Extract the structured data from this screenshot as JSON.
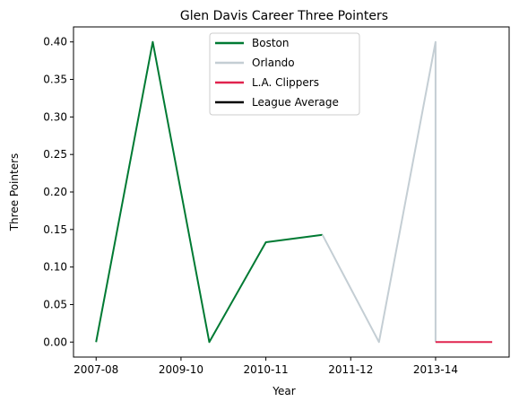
{
  "chart_data": {
    "type": "line",
    "title": "Glen Davis  Career Three Pointers",
    "xlabel": "Year",
    "ylabel": "Three Pointers",
    "x_ticks": [
      {
        "x": 0,
        "label": "2007-08"
      },
      {
        "x": 1.5,
        "label": "2009-10"
      },
      {
        "x": 3,
        "label": "2010-11"
      },
      {
        "x": 4.5,
        "label": "2011-12"
      },
      {
        "x": 6,
        "label": "2013-14"
      }
    ],
    "xlim": [
      -0.4,
      7.3
    ],
    "ylim": [
      -0.02,
      0.42
    ],
    "y_ticks": [
      "0.00",
      "0.05",
      "0.10",
      "0.15",
      "0.20",
      "0.25",
      "0.30",
      "0.35",
      "0.40"
    ],
    "grid": false,
    "legend_position": "upper center",
    "series": [
      {
        "name": "Boston",
        "color": "#007a33",
        "points": [
          [
            0,
            0.0
          ],
          [
            1,
            0.4
          ],
          [
            2,
            0.0
          ],
          [
            3,
            0.133
          ],
          [
            4,
            0.143
          ]
        ]
      },
      {
        "name": "Orlando",
        "color": "#c4ced4",
        "points": [
          [
            4,
            0.143
          ],
          [
            5,
            0.0
          ],
          [
            6,
            0.4
          ],
          [
            6,
            0.0
          ]
        ]
      },
      {
        "name": "L.A. Clippers",
        "color": "#e0234e",
        "points": [
          [
            6,
            0.0
          ],
          [
            7,
            0.0
          ]
        ]
      },
      {
        "name": "League Average",
        "color": "#000000",
        "points": []
      }
    ]
  }
}
